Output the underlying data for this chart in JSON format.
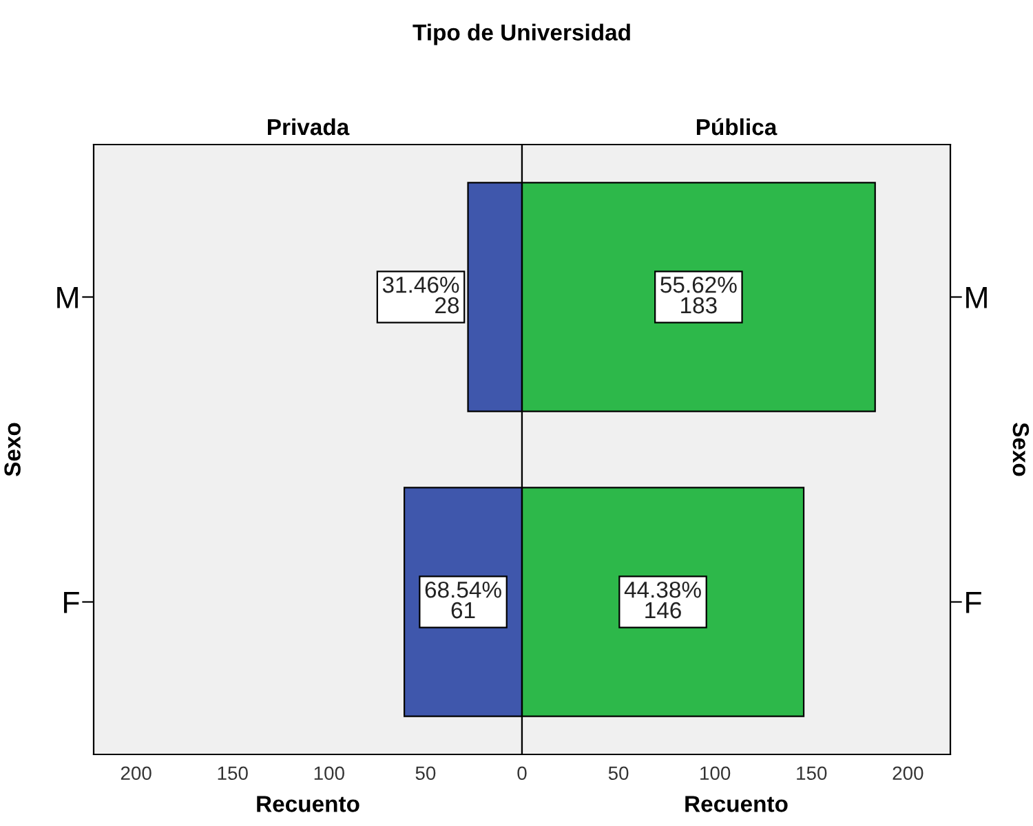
{
  "chart_data": [
    {
      "type": "bar",
      "orientation": "horizontal",
      "title": "Privada",
      "xlabel": "Recuento",
      "ylabel": "Sexo",
      "annotations": [
        "Tipo de Universidad"
      ],
      "categories": [
        "M",
        "F"
      ],
      "values": [
        28,
        61
      ],
      "color": "#3f57ac",
      "value_labels": [
        "31.46%\n28",
        "68.54%\n61"
      ],
      "xlim": [
        222,
        0
      ],
      "xticks": [
        200,
        150,
        100,
        50
      ],
      "grid": false
    },
    {
      "type": "bar",
      "orientation": "horizontal",
      "title": "Pública",
      "xlabel": "Recuento",
      "y2label": "Sexo",
      "categories": [
        "M",
        "F"
      ],
      "values": [
        183,
        146
      ],
      "color": "#2db84a",
      "value_labels": [
        "55.62%\n183",
        "44.38%\n146"
      ],
      "xlim": [
        0,
        222
      ],
      "xticks": [
        0,
        50,
        100,
        150,
        200
      ],
      "grid": false
    }
  ]
}
